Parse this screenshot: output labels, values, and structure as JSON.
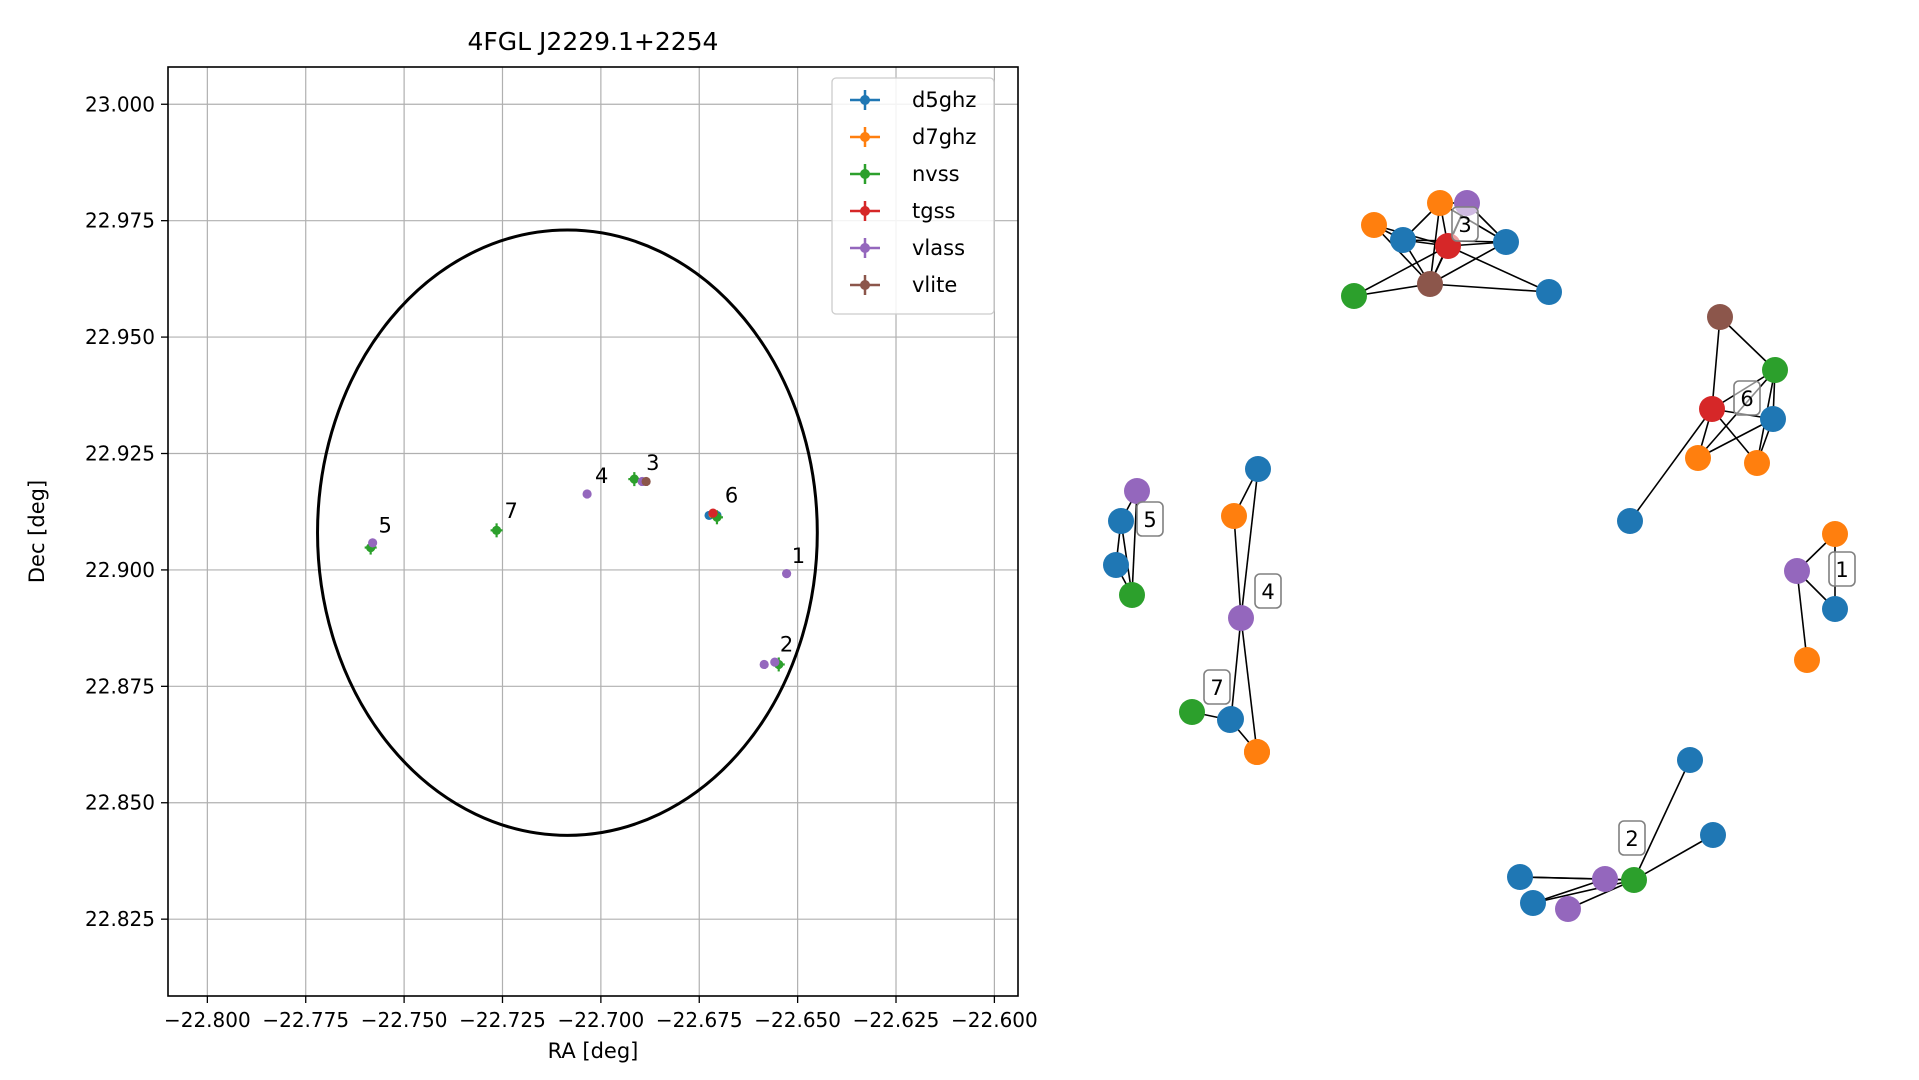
{
  "chart_data": [
    {
      "type": "scatter",
      "title": "4FGL J2229.1+2254",
      "xlabel": "RA [deg]",
      "ylabel": "Dec [deg]",
      "xlim": [
        -22.81,
        -22.594
      ],
      "ylim": [
        22.8085,
        23.008
      ],
      "xticks": [
        -22.8,
        -22.775,
        -22.75,
        -22.725,
        -22.7,
        -22.675,
        -22.65,
        -22.625,
        -22.6
      ],
      "xtick_labels": [
        "−22.800",
        "−22.775",
        "−22.750",
        "−22.725",
        "−22.700",
        "−22.675",
        "−22.650",
        "−22.625",
        "−22.600"
      ],
      "yticks": [
        22.825,
        22.85,
        22.875,
        22.9,
        22.925,
        22.95,
        22.975,
        23.0
      ],
      "ytick_labels": [
        "22.825",
        "22.850",
        "22.875",
        "22.900",
        "22.925",
        "22.950",
        "22.975",
        "23.000"
      ],
      "grid": true,
      "legend_position": "top-right",
      "series": [
        {
          "name": "d5ghz",
          "color": "#1f77b4",
          "points": [
            [
              -22.6725,
              22.9117
            ],
            [
              -22.6705,
              22.9117
            ]
          ]
        },
        {
          "name": "d7ghz",
          "color": "#ff7f0e",
          "points": [
            [
              -22.6715,
              22.912
            ]
          ]
        },
        {
          "name": "nvss",
          "color": "#2ca02c",
          "points": [
            [
              -22.7585,
              22.9048
            ],
            [
              -22.7265,
              22.9085
            ],
            [
              -22.6915,
              22.9195
            ],
            [
              -22.6705,
              22.9113
            ],
            [
              -22.6548,
              22.8797
            ]
          ]
        },
        {
          "name": "tgss",
          "color": "#d62728",
          "points": [
            [
              -22.6715,
              22.9122
            ]
          ]
        },
        {
          "name": "vlass",
          "color": "#9467bd",
          "points": [
            [
              -22.758,
              22.9058
            ],
            [
              -22.7035,
              22.9163
            ],
            [
              -22.6895,
              22.919
            ],
            [
              -22.6528,
              22.8992
            ],
            [
              -22.6585,
              22.8797
            ],
            [
              -22.6558,
              22.8802
            ]
          ]
        },
        {
          "name": "vlite",
          "color": "#8c564b",
          "points": [
            [
              -22.6885,
              22.919
            ]
          ]
        }
      ],
      "ellipse": {
        "center": [
          -22.7085,
          22.908
        ],
        "semi_axis_ra": 0.0635,
        "semi_axis_dec": 0.065
      },
      "annotations": [
        {
          "text": "1",
          "x": -22.6515,
          "y": 22.9015
        },
        {
          "text": "2",
          "x": -22.6545,
          "y": 22.8825
        },
        {
          "text": "3",
          "x": -22.6885,
          "y": 22.9215
        },
        {
          "text": "4",
          "x": -22.7015,
          "y": 22.9187
        },
        {
          "text": "5",
          "x": -22.7565,
          "y": 22.908
        },
        {
          "text": "6",
          "x": -22.6685,
          "y": 22.9145
        },
        {
          "text": "7",
          "x": -22.7245,
          "y": 22.9112
        }
      ]
    },
    {
      "type": "network",
      "node_colors": {
        "d5ghz": "#1f77b4",
        "d7ghz": "#ff7f0e",
        "nvss": "#2ca02c",
        "tgss": "#d62728",
        "vlass": "#9467bd",
        "vlite": "#8c564b"
      },
      "groups": [
        {
          "label": "1",
          "nodes": [
            {
              "id": "p",
              "survey": "vlass"
            },
            {
              "id": "o1",
              "survey": "d7ghz"
            },
            {
              "id": "b",
              "survey": "d5ghz"
            },
            {
              "id": "o2",
              "survey": "d7ghz"
            }
          ],
          "edges": [
            [
              "p",
              "o1"
            ],
            [
              "p",
              "b"
            ],
            [
              "p",
              "o2"
            ],
            [
              "o1",
              "b"
            ]
          ]
        },
        {
          "label": "2",
          "nodes": [
            {
              "id": "g",
              "survey": "nvss"
            },
            {
              "id": "p1",
              "survey": "vlass"
            },
            {
              "id": "p2",
              "survey": "vlass"
            },
            {
              "id": "b1",
              "survey": "d5ghz"
            },
            {
              "id": "b2",
              "survey": "d5ghz"
            },
            {
              "id": "b3",
              "survey": "d5ghz"
            },
            {
              "id": "b4",
              "survey": "d5ghz"
            }
          ],
          "edges": [
            [
              "g",
              "p1"
            ],
            [
              "g",
              "p2"
            ],
            [
              "g",
              "b1"
            ],
            [
              "g",
              "b2"
            ],
            [
              "g",
              "b3"
            ],
            [
              "g",
              "b4"
            ],
            [
              "p1",
              "b1"
            ],
            [
              "p1",
              "b2"
            ]
          ]
        },
        {
          "label": "3",
          "nodes": [
            {
              "id": "r",
              "survey": "tgss"
            },
            {
              "id": "o1",
              "survey": "d7ghz"
            },
            {
              "id": "o2",
              "survey": "d7ghz"
            },
            {
              "id": "p",
              "survey": "vlass"
            },
            {
              "id": "b1",
              "survey": "d5ghz"
            },
            {
              "id": "b2",
              "survey": "d5ghz"
            },
            {
              "id": "b3",
              "survey": "d5ghz"
            },
            {
              "id": "br",
              "survey": "vlite"
            },
            {
              "id": "g",
              "survey": "nvss"
            }
          ],
          "edges": [
            [
              "r",
              "o1"
            ],
            [
              "r",
              "o2"
            ],
            [
              "r",
              "p"
            ],
            [
              "r",
              "b1"
            ],
            [
              "r",
              "b2"
            ],
            [
              "r",
              "b3"
            ],
            [
              "r",
              "br"
            ],
            [
              "r",
              "g"
            ],
            [
              "o1",
              "b1"
            ],
            [
              "o1",
              "br"
            ],
            [
              "o2",
              "b1"
            ],
            [
              "o2",
              "p"
            ],
            [
              "o2",
              "br"
            ],
            [
              "o2",
              "b2"
            ],
            [
              "p",
              "br"
            ],
            [
              "p",
              "b2"
            ],
            [
              "b1",
              "br"
            ],
            [
              "b1",
              "b2"
            ],
            [
              "b2",
              "br"
            ],
            [
              "g",
              "br"
            ],
            [
              "br",
              "b3"
            ]
          ]
        },
        {
          "label": "4",
          "nodes": [
            {
              "id": "p",
              "survey": "vlass"
            },
            {
              "id": "o1",
              "survey": "d7ghz"
            },
            {
              "id": "b1",
              "survey": "d5ghz"
            },
            {
              "id": "b2",
              "survey": "d5ghz"
            },
            {
              "id": "o2",
              "survey": "d7ghz"
            }
          ],
          "edges": [
            [
              "p",
              "o1"
            ],
            [
              "p",
              "b1"
            ],
            [
              "p",
              "b2"
            ],
            [
              "p",
              "o2"
            ],
            [
              "o1",
              "b1"
            ]
          ]
        },
        {
          "label": "5",
          "nodes": [
            {
              "id": "p",
              "survey": "vlass"
            },
            {
              "id": "b1",
              "survey": "d5ghz"
            },
            {
              "id": "b2",
              "survey": "d5ghz"
            },
            {
              "id": "g",
              "survey": "nvss"
            }
          ],
          "edges": [
            [
              "p",
              "b1"
            ],
            [
              "p",
              "g"
            ],
            [
              "b1",
              "b2"
            ],
            [
              "b1",
              "g"
            ],
            [
              "b2",
              "g"
            ]
          ]
        },
        {
          "label": "6",
          "nodes": [
            {
              "id": "r",
              "survey": "tgss"
            },
            {
              "id": "br",
              "survey": "vlite"
            },
            {
              "id": "g",
              "survey": "nvss"
            },
            {
              "id": "b1",
              "survey": "d5ghz"
            },
            {
              "id": "o1",
              "survey": "d7ghz"
            },
            {
              "id": "o2",
              "survey": "d7ghz"
            },
            {
              "id": "b2",
              "survey": "d5ghz"
            }
          ],
          "edges": [
            [
              "r",
              "br"
            ],
            [
              "r",
              "g"
            ],
            [
              "r",
              "b1"
            ],
            [
              "r",
              "o1"
            ],
            [
              "r",
              "o2"
            ],
            [
              "r",
              "b2"
            ],
            [
              "br",
              "g"
            ],
            [
              "g",
              "b1"
            ],
            [
              "g",
              "o1"
            ],
            [
              "g",
              "o2"
            ],
            [
              "b1",
              "o1"
            ],
            [
              "b1",
              "o2"
            ]
          ]
        },
        {
          "label": "7",
          "nodes": [
            {
              "id": "g",
              "survey": "nvss"
            },
            {
              "id": "b",
              "survey": "d5ghz"
            },
            {
              "id": "o",
              "survey": "d7ghz"
            }
          ],
          "edges": [
            [
              "g",
              "b"
            ],
            [
              "b",
              "o"
            ]
          ]
        }
      ]
    }
  ]
}
